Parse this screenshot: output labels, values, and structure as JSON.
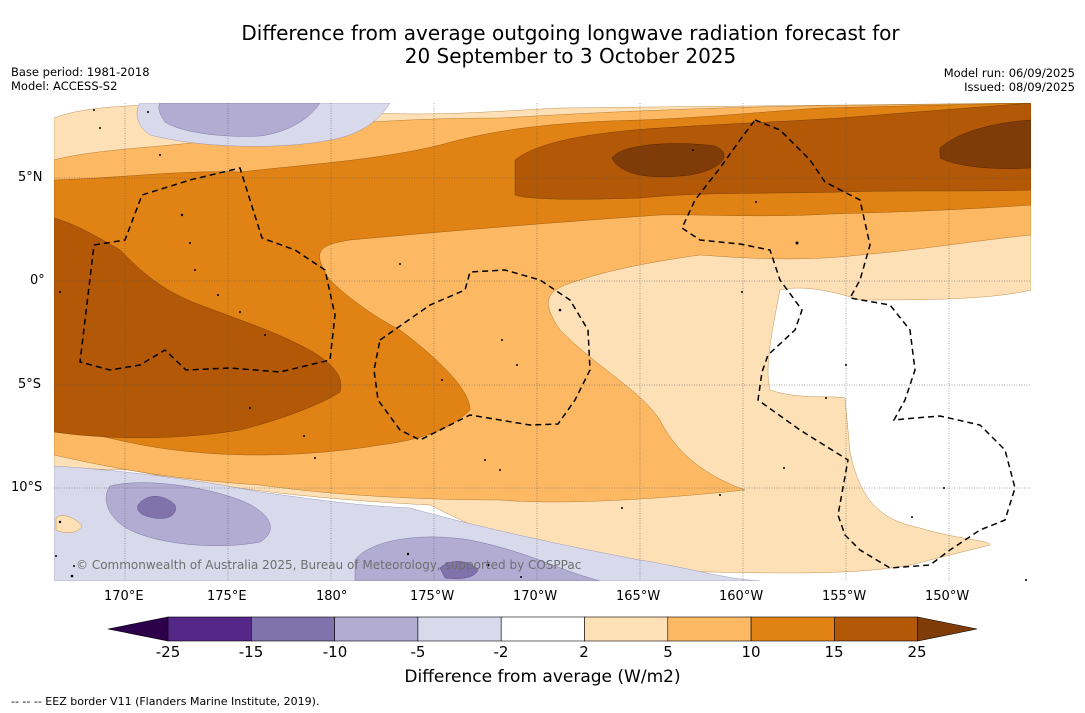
{
  "title_line1": "Difference from average outgoing longwave radiation forecast for",
  "title_line2": "20 September to 3 October 2025",
  "base_period": "Base period: 1981-2018",
  "model": "Model: ACCESS-S2",
  "model_run": "Model run: 06/09/2025",
  "issued": "Issued: 08/09/2025",
  "credit": "© Commonwealth of Australia 2025, Bureau of Meteorology, supported by COSPPac",
  "colorbar_label": "Difference from average (W/m2)",
  "eez_legend": "-- -- -- EEZ border V11 (Flanders Marine Institute, 2019).",
  "lat_labels": [
    "5°N",
    "0°",
    "5°S",
    "10°S"
  ],
  "lon_labels": [
    "170°E",
    "175°E",
    "180°",
    "175°W",
    "170°W",
    "165°W",
    "160°W",
    "155°W",
    "150°W"
  ],
  "colorbar_ticks": [
    "-25",
    "-15",
    "-10",
    "-5",
    "-2",
    "2",
    "5",
    "10",
    "15",
    "25"
  ],
  "colorbar_colors": [
    "#2d004b",
    "#542788",
    "#8073ac",
    "#b2abd2",
    "#d8daeb",
    "#ffffff",
    "#fee0b6",
    "#fdb863",
    "#e08214",
    "#b35806",
    "#7f3b08"
  ]
}
